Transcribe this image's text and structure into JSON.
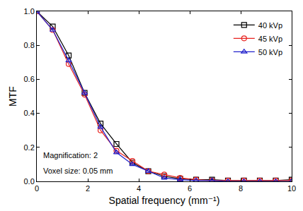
{
  "chart_data": {
    "type": "line",
    "x_label": "Spatial frequency (mm⁻¹)",
    "y_label": "MTF",
    "x": [
      0,
      0.625,
      1.25,
      1.875,
      2.5,
      3.125,
      3.75,
      4.375,
      5.0,
      5.625,
      6.25,
      6.875,
      7.5,
      8.125,
      8.75,
      9.375,
      10
    ],
    "series": [
      {
        "name": "40 kVp",
        "color": "#000000",
        "marker": "square",
        "line_style": "solid",
        "values": [
          1.0,
          0.91,
          0.74,
          0.52,
          0.34,
          0.22,
          0.11,
          0.06,
          0.03,
          0.015,
          0.01,
          0.01,
          0.005,
          0.005,
          0.005,
          0.005,
          0.01
        ]
      },
      {
        "name": "45 kVp",
        "color": "#e8211e",
        "marker": "circle",
        "line_style": "solid",
        "values": [
          1.0,
          0.89,
          0.69,
          0.51,
          0.3,
          0.18,
          0.12,
          0.06,
          0.04,
          0.02,
          0.01,
          0.005,
          0.005,
          0.005,
          0.005,
          0.005,
          0.005
        ]
      },
      {
        "name": "50 kVp",
        "color": "#2222cc",
        "marker": "triangle-up",
        "line_style": "solid",
        "values": [
          1.0,
          0.89,
          0.71,
          0.52,
          0.32,
          0.17,
          0.1,
          0.06,
          0.02,
          0.01,
          0.005,
          0.005,
          0.0,
          0.0,
          0.0,
          0.0,
          0.0
        ]
      }
    ],
    "xlim": [
      0,
      10
    ],
    "xticks": [
      0,
      2,
      4,
      6,
      8,
      10
    ],
    "ylim": [
      0,
      1.0
    ],
    "yticks": [
      {
        "value": 0,
        "label": "0.0"
      },
      0.2,
      0.4,
      0.6,
      0.8,
      {
        "value": 1,
        "label": "1.0"
      }
    ],
    "annotations": [
      "Magnification: 2",
      "Voxel size: 0.05 mm"
    ],
    "legend": "top-right",
    "grid": false
  }
}
